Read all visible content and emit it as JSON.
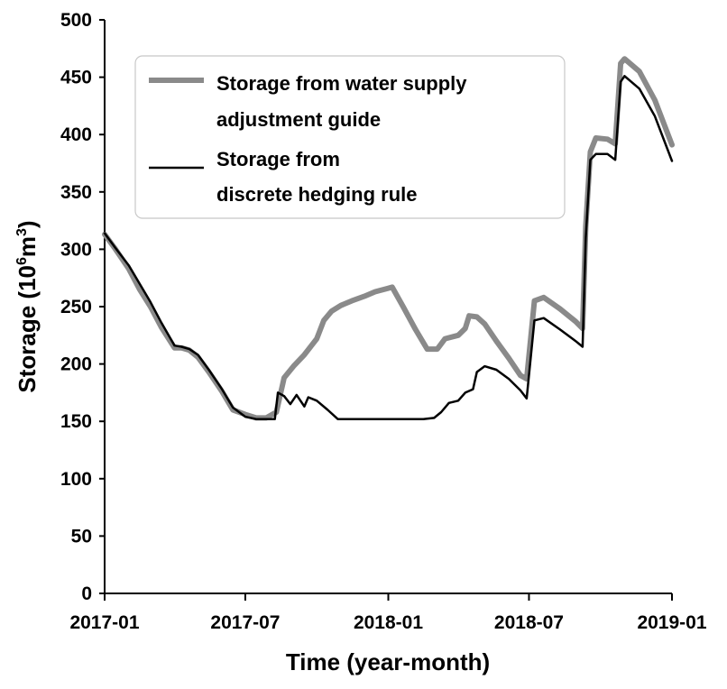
{
  "chart_data": {
    "type": "line",
    "xlabel": "Time (year-month)",
    "ylabel_main": "Storage (10",
    "ylabel_sup1": "6",
    "ylabel_mid": "m",
    "ylabel_sup2": "3",
    "ylabel_end": ")",
    "ylim": [
      0,
      500
    ],
    "yticks": [
      "0",
      "50",
      "100",
      "150",
      "200",
      "250",
      "300",
      "350",
      "400",
      "450",
      "500"
    ],
    "xlim": [
      "2017-01",
      "2019-01"
    ],
    "xticks": [
      "2017-01",
      "2017-07",
      "2018-01",
      "2018-07",
      "2019-01"
    ],
    "grid": false,
    "legend_position": "top",
    "legend": {
      "series1_line1": "Storage from water supply",
      "series1_line2": "adjustment guide",
      "series2_line1": "Storage from",
      "series2_line2": "discrete hedging rule"
    },
    "series": [
      {
        "name": "Storage from water supply adjustment guide",
        "color": "#8a8a8a",
        "points": [
          [
            "2017-01-01",
            313
          ],
          [
            "2017-01-15",
            300
          ],
          [
            "2017-02-01",
            283
          ],
          [
            "2017-02-15",
            265
          ],
          [
            "2017-03-01",
            250
          ],
          [
            "2017-03-15",
            232
          ],
          [
            "2017-04-01",
            214
          ],
          [
            "2017-04-10",
            214
          ],
          [
            "2017-04-20",
            212
          ],
          [
            "2017-05-01",
            206
          ],
          [
            "2017-05-15",
            193
          ],
          [
            "2017-06-01",
            176
          ],
          [
            "2017-06-15",
            160
          ],
          [
            "2017-07-01",
            156
          ],
          [
            "2017-07-15",
            153
          ],
          [
            "2017-07-28",
            153
          ],
          [
            "2017-08-10",
            158
          ],
          [
            "2017-08-20",
            188
          ],
          [
            "2017-09-01",
            198
          ],
          [
            "2017-09-15",
            208
          ],
          [
            "2017-10-01",
            222
          ],
          [
            "2017-10-10",
            238
          ],
          [
            "2017-10-20",
            246
          ],
          [
            "2017-11-01",
            251
          ],
          [
            "2017-11-15",
            255
          ],
          [
            "2017-12-01",
            259
          ],
          [
            "2017-12-15",
            263
          ],
          [
            "2018-01-01",
            266
          ],
          [
            "2018-01-06",
            267
          ],
          [
            "2018-01-20",
            250
          ],
          [
            "2018-02-05",
            230
          ],
          [
            "2018-02-20",
            213
          ],
          [
            "2018-03-05",
            213
          ],
          [
            "2018-03-15",
            222
          ],
          [
            "2018-04-01",
            225
          ],
          [
            "2018-04-10",
            231
          ],
          [
            "2018-04-15",
            242
          ],
          [
            "2018-04-25",
            241
          ],
          [
            "2018-05-05",
            235
          ],
          [
            "2018-05-20",
            220
          ],
          [
            "2018-06-05",
            205
          ],
          [
            "2018-06-20",
            190
          ],
          [
            "2018-06-28",
            187
          ],
          [
            "2018-07-08",
            255
          ],
          [
            "2018-07-20",
            258
          ],
          [
            "2018-08-10",
            248
          ],
          [
            "2018-08-30",
            237
          ],
          [
            "2018-09-08",
            231
          ],
          [
            "2018-09-12",
            320
          ],
          [
            "2018-09-18",
            385
          ],
          [
            "2018-09-25",
            397
          ],
          [
            "2018-10-10",
            396
          ],
          [
            "2018-10-20",
            392
          ],
          [
            "2018-10-27",
            462
          ],
          [
            "2018-11-01",
            466
          ],
          [
            "2018-11-20",
            455
          ],
          [
            "2018-12-10",
            430
          ],
          [
            "2019-01-01",
            391
          ]
        ]
      },
      {
        "name": "Storage from discrete hedging rule",
        "color": "#000000",
        "points": [
          [
            "2017-01-01",
            314
          ],
          [
            "2017-01-15",
            301
          ],
          [
            "2017-02-01",
            286
          ],
          [
            "2017-02-15",
            270
          ],
          [
            "2017-03-01",
            254
          ],
          [
            "2017-03-15",
            236
          ],
          [
            "2017-04-01",
            216
          ],
          [
            "2017-04-10",
            215
          ],
          [
            "2017-04-20",
            213
          ],
          [
            "2017-05-01",
            208
          ],
          [
            "2017-05-15",
            195
          ],
          [
            "2017-06-01",
            178
          ],
          [
            "2017-06-15",
            162
          ],
          [
            "2017-07-01",
            154
          ],
          [
            "2017-07-15",
            152
          ],
          [
            "2017-07-28",
            152
          ],
          [
            "2017-08-08",
            152
          ],
          [
            "2017-08-12",
            175
          ],
          [
            "2017-08-20",
            172
          ],
          [
            "2017-08-28",
            165
          ],
          [
            "2017-09-05",
            173
          ],
          [
            "2017-09-15",
            163
          ],
          [
            "2017-09-20",
            171
          ],
          [
            "2017-10-01",
            168
          ],
          [
            "2017-10-15",
            160
          ],
          [
            "2017-10-28",
            152
          ],
          [
            "2017-11-15",
            152
          ],
          [
            "2017-12-15",
            152
          ],
          [
            "2018-01-15",
            152
          ],
          [
            "2018-02-15",
            152
          ],
          [
            "2018-03-01",
            153
          ],
          [
            "2018-03-10",
            158
          ],
          [
            "2018-03-20",
            166
          ],
          [
            "2018-04-01",
            168
          ],
          [
            "2018-04-10",
            175
          ],
          [
            "2018-04-20",
            178
          ],
          [
            "2018-04-25",
            193
          ],
          [
            "2018-05-05",
            198
          ],
          [
            "2018-05-20",
            195
          ],
          [
            "2018-06-05",
            187
          ],
          [
            "2018-06-20",
            177
          ],
          [
            "2018-06-28",
            170
          ],
          [
            "2018-07-08",
            238
          ],
          [
            "2018-07-20",
            240
          ],
          [
            "2018-08-10",
            230
          ],
          [
            "2018-08-30",
            220
          ],
          [
            "2018-09-08",
            215
          ],
          [
            "2018-09-12",
            310
          ],
          [
            "2018-09-18",
            378
          ],
          [
            "2018-09-25",
            383
          ],
          [
            "2018-10-10",
            383
          ],
          [
            "2018-10-20",
            378
          ],
          [
            "2018-10-27",
            446
          ],
          [
            "2018-11-01",
            451
          ],
          [
            "2018-11-20",
            440
          ],
          [
            "2018-12-10",
            416
          ],
          [
            "2019-01-01",
            377
          ]
        ]
      }
    ]
  }
}
